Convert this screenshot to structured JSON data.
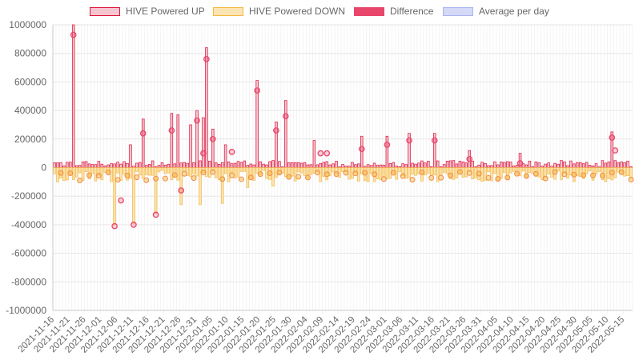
{
  "chart_data": {
    "type": "bar",
    "title": "",
    "xlabel": "",
    "ylabel": "",
    "ylim": [
      -1000000,
      1000000
    ],
    "yticks": [
      1000000,
      800000,
      600000,
      400000,
      200000,
      0,
      -200000,
      -400000,
      -600000,
      -800000,
      -1000000
    ],
    "ytick_labels": [
      "1000000",
      "800000",
      "600000",
      "400000",
      "200000",
      "0",
      "-200000",
      "-400000",
      "-600000",
      "-800000",
      "-1000000"
    ],
    "x_tick_labels": [
      "2021-11-16",
      "2021-11-21",
      "2021-11-26",
      "2021-12-01",
      "2021-12-06",
      "2021-12-11",
      "2021-12-16",
      "2021-12-21",
      "2021-12-26",
      "2021-12-31",
      "2022-01-05",
      "2022-01-10",
      "2022-01-15",
      "2022-01-20",
      "2022-01-25",
      "2022-01-30",
      "2022-02-04",
      "2022-02-09",
      "2022-02-14",
      "2022-02-19",
      "2022-02-24",
      "2022-03-01",
      "2022-03-06",
      "2022-03-11",
      "2022-03-16",
      "2022-03-21",
      "2022-03-26",
      "2022-03-31",
      "2022-04-05",
      "2022-04-10",
      "2022-04-15",
      "2022-04-20",
      "2022-04-25",
      "2022-04-30",
      "2022-05-05",
      "2022-05-10",
      "2022-05-15"
    ],
    "x_start": "2021-11-16",
    "x_end": "2022-05-18",
    "grid": true,
    "legend_position": "top",
    "series": [
      {
        "name": "HIVE Powered UP",
        "color": "#dc143c",
        "fill": "#f7c5cf",
        "kind": "bar"
      },
      {
        "name": "HIVE Powered DOWN",
        "color": "#f5b942",
        "fill": "#fde5b3",
        "kind": "bar"
      },
      {
        "name": "Difference",
        "color": "#e8466a",
        "fill": "#e8466a",
        "kind": "line-points"
      },
      {
        "name": "Average per day",
        "color": "#aab4f0",
        "fill": "#d3d9f7",
        "kind": "line"
      }
    ],
    "difference_points": [
      {
        "x": "2021-11-22",
        "y": 930000
      },
      {
        "x": "2021-12-05",
        "y": -410000
      },
      {
        "x": "2021-12-07",
        "y": -230000
      },
      {
        "x": "2021-12-11",
        "y": -400000
      },
      {
        "x": "2021-12-14",
        "y": 240000
      },
      {
        "x": "2021-12-18",
        "y": -330000
      },
      {
        "x": "2021-12-23",
        "y": 260000
      },
      {
        "x": "2021-12-26",
        "y": -160000
      },
      {
        "x": "2021-12-31",
        "y": 330000
      },
      {
        "x": "2022-01-02",
        "y": 100000
      },
      {
        "x": "2022-01-03",
        "y": 760000
      },
      {
        "x": "2022-01-05",
        "y": 200000
      },
      {
        "x": "2022-01-11",
        "y": 110000
      },
      {
        "x": "2022-01-19",
        "y": 540000
      },
      {
        "x": "2022-01-25",
        "y": 260000
      },
      {
        "x": "2022-01-28",
        "y": 360000
      },
      {
        "x": "2022-02-08",
        "y": 100000
      },
      {
        "x": "2022-02-10",
        "y": 100000
      },
      {
        "x": "2022-02-21",
        "y": 130000
      },
      {
        "x": "2022-03-01",
        "y": 160000
      },
      {
        "x": "2022-03-08",
        "y": 190000
      },
      {
        "x": "2022-03-16",
        "y": 190000
      },
      {
        "x": "2022-03-27",
        "y": 60000
      },
      {
        "x": "2022-04-12",
        "y": 30000
      },
      {
        "x": "2022-05-11",
        "y": 210000
      },
      {
        "x": "2022-05-12",
        "y": 120000
      }
    ],
    "up_spikes": [
      {
        "x": "2021-11-22",
        "y": 1000000
      },
      {
        "x": "2021-12-10",
        "y": 160000
      },
      {
        "x": "2021-12-14",
        "y": 340000
      },
      {
        "x": "2021-12-23",
        "y": 380000
      },
      {
        "x": "2021-12-25",
        "y": 370000
      },
      {
        "x": "2021-12-29",
        "y": 300000
      },
      {
        "x": "2021-12-31",
        "y": 400000
      },
      {
        "x": "2022-01-02",
        "y": 350000
      },
      {
        "x": "2022-01-03",
        "y": 840000
      },
      {
        "x": "2022-01-05",
        "y": 270000
      },
      {
        "x": "2022-01-09",
        "y": 160000
      },
      {
        "x": "2022-01-19",
        "y": 610000
      },
      {
        "x": "2022-01-25",
        "y": 320000
      },
      {
        "x": "2022-01-28",
        "y": 470000
      },
      {
        "x": "2022-02-06",
        "y": 190000
      },
      {
        "x": "2022-02-21",
        "y": 220000
      },
      {
        "x": "2022-03-01",
        "y": 220000
      },
      {
        "x": "2022-03-08",
        "y": 240000
      },
      {
        "x": "2022-03-16",
        "y": 240000
      },
      {
        "x": "2022-03-27",
        "y": 120000
      },
      {
        "x": "2022-04-12",
        "y": 100000
      },
      {
        "x": "2022-05-11",
        "y": 250000
      }
    ],
    "down_spikes": [
      {
        "x": "2021-12-05",
        "y": -400000
      },
      {
        "x": "2021-12-11",
        "y": -390000
      },
      {
        "x": "2021-12-18",
        "y": -320000
      },
      {
        "x": "2021-12-26",
        "y": -260000
      },
      {
        "x": "2022-01-01",
        "y": -260000
      },
      {
        "x": "2022-01-08",
        "y": -250000
      },
      {
        "x": "2022-01-16",
        "y": -140000
      },
      {
        "x": "2022-01-24",
        "y": -130000
      }
    ]
  }
}
